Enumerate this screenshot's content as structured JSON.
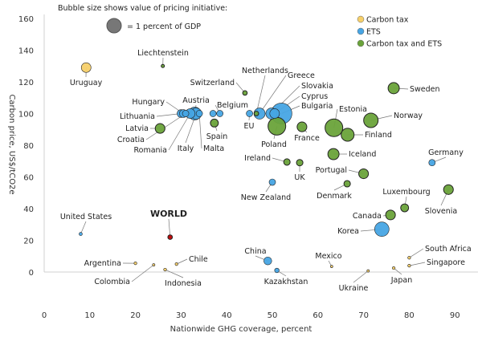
{
  "chart_data": {
    "type": "scatter",
    "title": "Bubble size shows value of pricing initiative:",
    "size_legend": "= 1 percent of GDP",
    "xlabel": "Nationwide GHG coverage, percent",
    "ylabel": "Carbon price, US$/tCO2e",
    "xlim": [
      0,
      95
    ],
    "ylim": [
      0,
      160
    ],
    "xticks": [
      "0",
      "10",
      "20",
      "30",
      "40",
      "50",
      "60",
      "70",
      "80",
      "90"
    ],
    "yticks": [
      "0",
      "20",
      "40",
      "60",
      "80",
      "100",
      "120",
      "140",
      "160"
    ],
    "legend": [
      {
        "key": "tax",
        "label": "Carbon tax",
        "color": "#f7d06a"
      },
      {
        "key": "ets",
        "label": "ETS",
        "color": "#47a5e4"
      },
      {
        "key": "both",
        "label": "Carbon tax and ETS",
        "color": "#6aa33a"
      }
    ],
    "world_color": "#c00000",
    "points": [
      {
        "label": "Uruguay",
        "type": "tax",
        "x": 9.2,
        "y": 129,
        "size": 0.45
      },
      {
        "label": "Liechtenstein",
        "type": "both",
        "x": 26,
        "y": 130,
        "size": 0.05
      },
      {
        "label": "Switzerland",
        "type": "both",
        "x": 44,
        "y": 113,
        "size": 0.1
      },
      {
        "label": "Lithuania",
        "type": "ets",
        "x": 30,
        "y": 100,
        "size": 0.3
      },
      {
        "label": "Hungary",
        "type": "ets",
        "x": 30.5,
        "y": 100,
        "size": 0.3
      },
      {
        "label": "Croatia",
        "type": "ets",
        "x": 31,
        "y": 100,
        "size": 0.2
      },
      {
        "label": "Romania",
        "type": "ets",
        "x": 32,
        "y": 100,
        "size": 0.45
      },
      {
        "label": "Austria",
        "type": "ets",
        "x": 33,
        "y": 100,
        "size": 0.8
      },
      {
        "label": "Italy",
        "type": "ets",
        "x": 33.3,
        "y": 100,
        "size": 0.6
      },
      {
        "label": "Malta",
        "type": "ets",
        "x": 34,
        "y": 100,
        "size": 0.2
      },
      {
        "label": "Latvia",
        "type": "both",
        "x": 25.4,
        "y": 90.6,
        "size": 0.45
      },
      {
        "label": "",
        "type": "ets",
        "x": 37,
        "y": 100,
        "size": 0.2
      },
      {
        "label": "Belgium",
        "type": "ets",
        "x": 38.5,
        "y": 100,
        "size": 0.2
      },
      {
        "label": "Spain",
        "type": "both",
        "x": 37.3,
        "y": 94,
        "size": 0.3
      },
      {
        "label": "EU",
        "type": "ets",
        "x": 45,
        "y": 100,
        "size": 0.2
      },
      {
        "label": "Greece",
        "type": "ets",
        "x": 47.2,
        "y": 100,
        "size": 0.6
      },
      {
        "label": "Netherlands",
        "type": "both",
        "x": 46.5,
        "y": 100,
        "size": 0.1
      },
      {
        "label": "Slovakia",
        "type": "ets",
        "x": 49.8,
        "y": 100,
        "size": 0.6
      },
      {
        "label": "Cyprus",
        "type": "ets",
        "x": 50.5,
        "y": 100,
        "size": 0.45
      },
      {
        "label": "Bulgaria",
        "type": "ets",
        "x": 52,
        "y": 100,
        "size": 2.1
      },
      {
        "label": "Poland",
        "type": "both",
        "x": 51,
        "y": 92,
        "size": 1.5
      },
      {
        "label": "France",
        "type": "both",
        "x": 56.5,
        "y": 91.6,
        "size": 0.45
      },
      {
        "label": "Estonia",
        "type": "both",
        "x": 63.5,
        "y": 91,
        "size": 1.5
      },
      {
        "label": "Finland",
        "type": "both",
        "x": 66.5,
        "y": 86.6,
        "size": 0.8
      },
      {
        "label": "Norway",
        "type": "both",
        "x": 71.6,
        "y": 95.7,
        "size": 1.0
      },
      {
        "label": "Sweden",
        "type": "both",
        "x": 76.6,
        "y": 116,
        "size": 0.6
      },
      {
        "label": "Iceland",
        "type": "both",
        "x": 63.4,
        "y": 74.4,
        "size": 0.6
      },
      {
        "label": "Ireland",
        "type": "both",
        "x": 53.2,
        "y": 69.4,
        "size": 0.2
      },
      {
        "label": "UK",
        "type": "both",
        "x": 56,
        "y": 69,
        "size": 0.2
      },
      {
        "label": "Germany",
        "type": "ets",
        "x": 85,
        "y": 69,
        "size": 0.2
      },
      {
        "label": "New Zealand",
        "type": "ets",
        "x": 50,
        "y": 56.7,
        "size": 0.2
      },
      {
        "label": "Portugal",
        "type": "both",
        "x": 70,
        "y": 62,
        "size": 0.45
      },
      {
        "label": "Denmark",
        "type": "both",
        "x": 66.4,
        "y": 55.7,
        "size": 0.2
      },
      {
        "label": "Luxembourg",
        "type": "both",
        "x": 79,
        "y": 40.5,
        "size": 0.3
      },
      {
        "label": "Slovenia",
        "type": "both",
        "x": 88.6,
        "y": 52,
        "size": 0.45
      },
      {
        "label": "Canada",
        "type": "both",
        "x": 75.9,
        "y": 36,
        "size": 0.45
      },
      {
        "label": "Korea",
        "type": "ets",
        "x": 74,
        "y": 27,
        "size": 1.0
      },
      {
        "label": "United States",
        "type": "ets",
        "x": 8,
        "y": 24,
        "size": 0.05
      },
      {
        "label": "WORLD",
        "type": "world",
        "x": 27.6,
        "y": 22,
        "size": 0.1
      },
      {
        "label": "China",
        "type": "ets",
        "x": 49,
        "y": 7,
        "size": 0.3
      },
      {
        "label": "Kazakhstan",
        "type": "ets",
        "x": 51,
        "y": 1,
        "size": 0.1
      },
      {
        "label": "Mexico",
        "type": "tax",
        "x": 63,
        "y": 3.5,
        "size": 0.01
      },
      {
        "label": "Argentina",
        "type": "tax",
        "x": 20,
        "y": 5.5,
        "size": 0.04
      },
      {
        "label": "Colombia",
        "type": "tax",
        "x": 24,
        "y": 4.5,
        "size": 0.03
      },
      {
        "label": "Indonesia",
        "type": "tax",
        "x": 26.5,
        "y": 1.5,
        "size": 0.04
      },
      {
        "label": "Chile",
        "type": "tax",
        "x": 29,
        "y": 5,
        "size": 0.04
      },
      {
        "label": "Ukraine",
        "type": "tax",
        "x": 71,
        "y": 0.7,
        "size": 0.03
      },
      {
        "label": "Japan",
        "type": "tax",
        "x": 76.6,
        "y": 2.5,
        "size": 0.04
      },
      {
        "label": "South Africa",
        "type": "tax",
        "x": 80,
        "y": 9,
        "size": 0.04
      },
      {
        "label": "Singapore",
        "type": "tax",
        "x": 80,
        "y": 4,
        "size": 0.04
      }
    ]
  }
}
